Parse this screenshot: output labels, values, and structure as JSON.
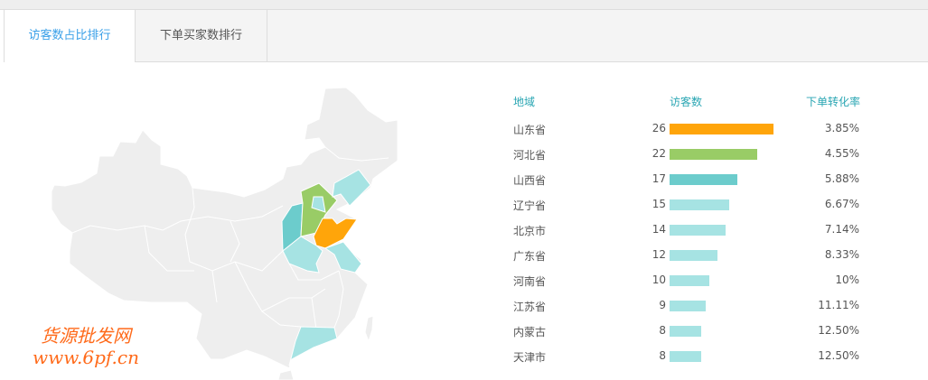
{
  "tabs": [
    {
      "label": "访客数占比排行",
      "active": true
    },
    {
      "label": "下单买家数排行",
      "active": false
    }
  ],
  "table": {
    "headers": {
      "region": "地域",
      "visitors": "访客数",
      "conversion": "下单转化率"
    },
    "max_visitors": 26,
    "rows": [
      {
        "region": "山东省",
        "visitors": 26,
        "rate": "3.85%",
        "color": "#ffa50a"
      },
      {
        "region": "河北省",
        "visitors": 22,
        "rate": "4.55%",
        "color": "#99cc66"
      },
      {
        "region": "山西省",
        "visitors": 17,
        "rate": "5.88%",
        "color": "#6ccccc"
      },
      {
        "region": "辽宁省",
        "visitors": 15,
        "rate": "6.67%",
        "color": "#a6e3e3"
      },
      {
        "region": "北京市",
        "visitors": 14,
        "rate": "7.14%",
        "color": "#a6e3e3"
      },
      {
        "region": "广东省",
        "visitors": 12,
        "rate": "8.33%",
        "color": "#a6e3e3"
      },
      {
        "region": "河南省",
        "visitors": 10,
        "rate": "10%",
        "color": "#a6e3e3"
      },
      {
        "region": "江苏省",
        "visitors": 9,
        "rate": "11.11%",
        "color": "#a6e3e3"
      },
      {
        "region": "内蒙古",
        "visitors": 8,
        "rate": "12.50%",
        "color": "#a6e3e3"
      },
      {
        "region": "天津市",
        "visitors": 8,
        "rate": "12.50%",
        "color": "#a6e3e3"
      }
    ]
  },
  "map": {
    "base_color": "#eeeeee",
    "highlight": {
      "山东": "#ffa50a",
      "河北": "#99cc66",
      "山西": "#6ccccc",
      "others": "#a6e3e3"
    }
  },
  "watermark": {
    "line1": "货源批发网",
    "line2": "www.6pf.cn"
  }
}
